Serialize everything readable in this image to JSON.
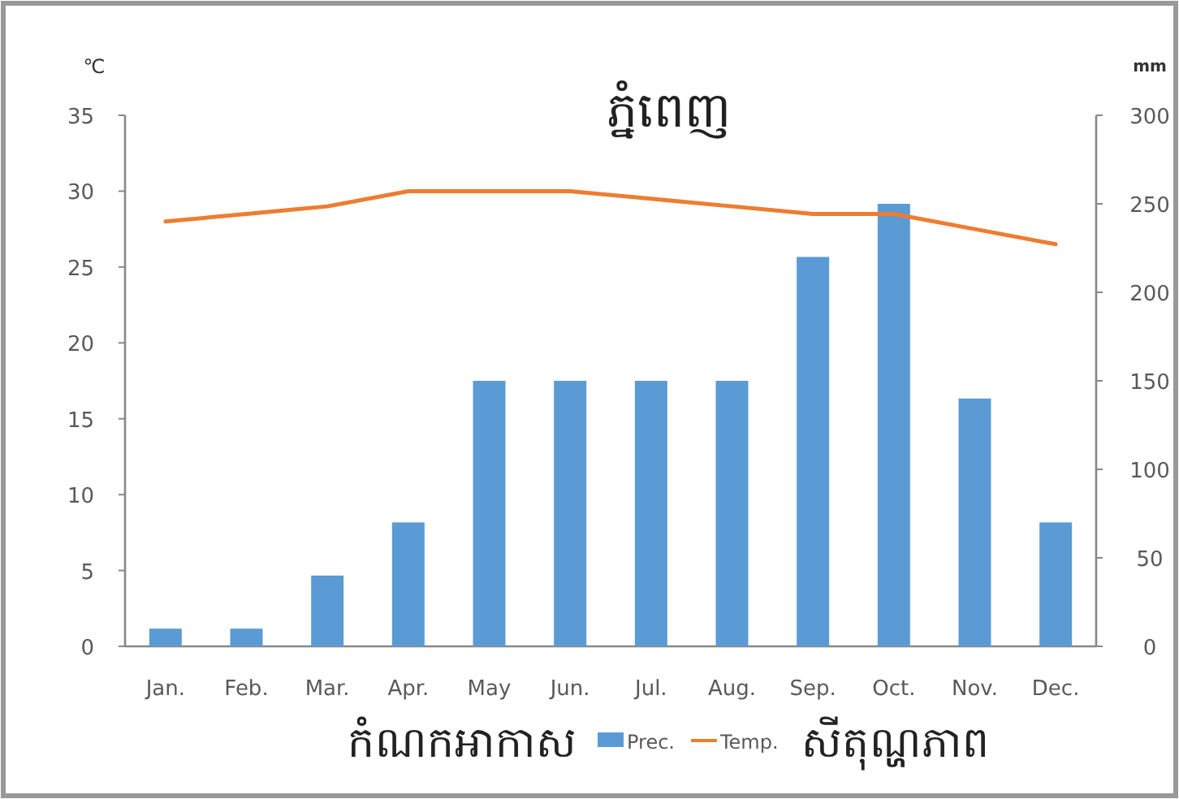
{
  "chart_data": {
    "type": "bar",
    "title": "ភ្នំពេញ",
    "ylabel": "℃",
    "y2label": "mm",
    "categories": [
      "Jan.",
      "Feb.",
      "Mar.",
      "Apr.",
      "May",
      "Jun.",
      "Jul.",
      "Aug.",
      "Sep.",
      "Oct.",
      "Nov.",
      "Dec."
    ],
    "series": [
      {
        "name": "Prec.",
        "axis": "y2",
        "color": "#5b9bd5",
        "values": [
          10,
          10,
          40,
          70,
          150,
          150,
          150,
          150,
          220,
          250,
          140,
          70
        ]
      },
      {
        "name": "Temp.",
        "type": "line",
        "color": "#ed7d31",
        "values": [
          28,
          28.5,
          29,
          30,
          30,
          30,
          29.5,
          29,
          28.5,
          28.5,
          27.5,
          26.5
        ]
      }
    ],
    "ylim": [
      0,
      35
    ],
    "yticks": [
      0,
      5,
      10,
      15,
      20,
      25,
      30,
      35
    ],
    "y2lim": [
      0,
      300
    ],
    "y2ticks": [
      0,
      50,
      100,
      150,
      200,
      250,
      300
    ],
    "legend": "bottom",
    "annotations": [
      "កំណកអាកាស",
      "សីតុណ្ហភាព"
    ]
  }
}
